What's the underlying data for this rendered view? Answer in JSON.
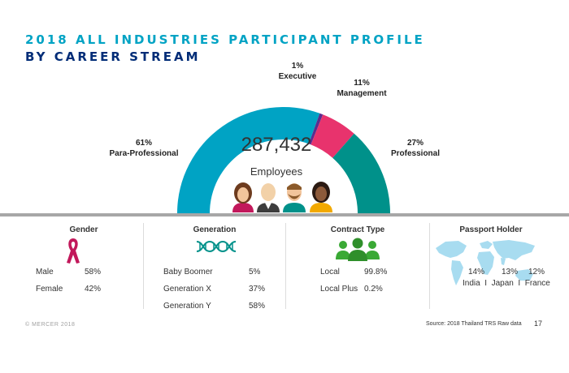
{
  "title_line1": "2018 ALL INDUSTRIES PARTICIPANT PROFILE",
  "title_line2": "BY CAREER STREAM",
  "chart_data": {
    "type": "pie",
    "style": "half-donut",
    "total_value": "287,432",
    "total_label": "Employees",
    "slices": [
      {
        "name": "Para-Professional",
        "pct_label": "61%",
        "value": 61,
        "color": "#00a3c4"
      },
      {
        "name": "Executive",
        "pct_label": "1%",
        "value": 1,
        "color": "#5b2d8e"
      },
      {
        "name": "Management",
        "pct_label": "11%",
        "value": 11,
        "color": "#e8336d"
      },
      {
        "name": "Professional",
        "pct_label": "27%",
        "value": 27,
        "color": "#00918a"
      }
    ]
  },
  "gender": {
    "title": "Gender",
    "icon": "ribbon-icon",
    "rows": [
      {
        "label": "Male",
        "value": "58%"
      },
      {
        "label": "Female",
        "value": "42%"
      }
    ]
  },
  "generation": {
    "title": "Generation",
    "icon": "dna-icon",
    "rows": [
      {
        "label": "Baby Boomer",
        "value": "5%"
      },
      {
        "label": "Generation X",
        "value": "37%"
      },
      {
        "label": "Generation Y",
        "value": "58%"
      }
    ]
  },
  "contract": {
    "title": "Contract Type",
    "icon": "people-group-icon",
    "rows": [
      {
        "label": "Local",
        "value": "99.8%"
      },
      {
        "label": "Local Plus",
        "value": "0.2%"
      }
    ]
  },
  "passport": {
    "title": "Passport Holder",
    "icon": "world-map-icon",
    "values": [
      "14%",
      "13%",
      "12%"
    ],
    "countries_line": "India  I  Japan  I  France"
  },
  "footer": {
    "copyright": "© MERCER 2018",
    "source": "Source: 2018 Thailand TRS Raw data",
    "page": "17"
  },
  "colors": {
    "title_accent": "#00a3c4",
    "title_dark": "#002c77",
    "ribbon": "#c2185b",
    "dna": "#00918a",
    "contract": "#3aa935",
    "map": "#a8dcf0"
  }
}
